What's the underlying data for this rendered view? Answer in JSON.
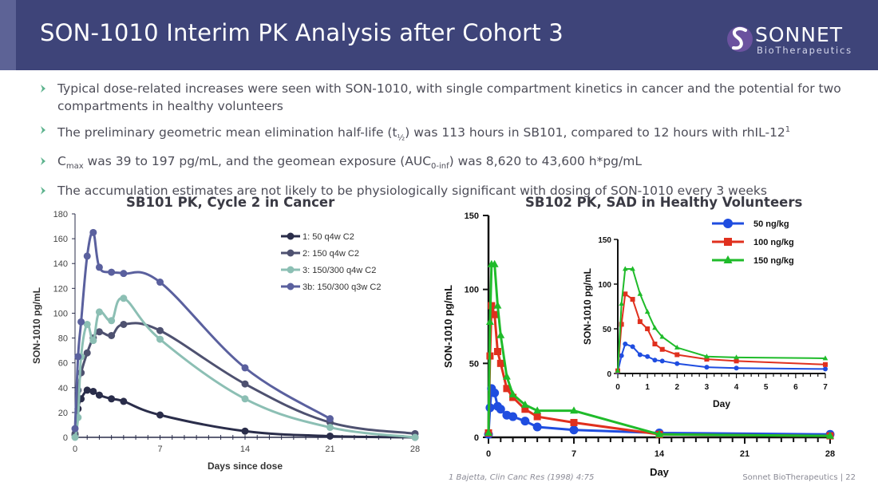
{
  "header": {
    "title": "SON-1010 Interim PK Analysis after Cohort 3"
  },
  "logo": {
    "name": "SONNET",
    "tagline": "BioTherapeutics"
  },
  "bullets": [
    {
      "parts": [
        {
          "t": "Typical dose-related increases were seen with SON-1010, with single compartment kinetics in cancer and the potential for two compartments in healthy volunteers"
        }
      ]
    },
    {
      "parts": [
        {
          "t": "The preliminary geometric mean elimination half-life (t"
        },
        {
          "t": "½",
          "s": "sub"
        },
        {
          "t": ") was 113 hours in SB101, compared to 12 hours with rhIL-12"
        },
        {
          "t": "1",
          "s": "sup"
        }
      ]
    },
    {
      "parts": [
        {
          "t": "C"
        },
        {
          "t": "max",
          "s": "sub"
        },
        {
          "t": " was 39 to 197 pg/mL, and the geomean exposure (AUC"
        },
        {
          "t": "0-inf",
          "s": "sub"
        },
        {
          "t": ") was 8,620 to 43,600 h*pg/mL"
        }
      ]
    },
    {
      "parts": [
        {
          "t": "The accumulation estimates are not likely to be physiologically significant with dosing of SON-1010 every 3 weeks"
        }
      ]
    }
  ],
  "chart_data": [
    {
      "type": "line",
      "title": "SB101 PK, Cycle 2 in Cancer",
      "xlabel": "Days since dose",
      "ylabel": "SON-1010 pg/mL",
      "xlim": [
        0,
        28
      ],
      "ylim": [
        0,
        180
      ],
      "xticks": [
        0,
        7,
        14,
        21,
        28
      ],
      "yticks": [
        0,
        20,
        40,
        60,
        80,
        100,
        120,
        140,
        160,
        180
      ],
      "legend": "top-right",
      "grid": false,
      "series": [
        {
          "name": "1: 50 q4w C2",
          "color": "#2a2d4a",
          "x": [
            0,
            0.25,
            0.5,
            1,
            1.5,
            2,
            3,
            4,
            7,
            14,
            21,
            28
          ],
          "y": [
            2,
            23,
            31,
            38,
            37,
            34,
            31,
            29,
            18,
            5,
            1,
            0
          ]
        },
        {
          "name": "2: 150 q4w C2",
          "color": "#4e5170",
          "x": [
            0,
            0.25,
            0.5,
            1,
            1.5,
            2,
            3,
            4,
            7,
            14,
            21,
            28
          ],
          "y": [
            3,
            38,
            52,
            68,
            80,
            85,
            82,
            91,
            86,
            43,
            12,
            3
          ]
        },
        {
          "name": "3: 150/300 q4w C2",
          "color": "#8cbfb4",
          "x": [
            0,
            0.25,
            0.5,
            1,
            1.5,
            2,
            3,
            4,
            7,
            14,
            21,
            28
          ],
          "y": [
            0,
            16,
            65,
            91,
            78,
            101,
            94,
            112,
            79,
            31,
            8,
            0
          ]
        },
        {
          "name": "3b: 150/300 q3w C2",
          "color": "#5a609e",
          "x": [
            0,
            0.25,
            0.5,
            1,
            1.5,
            2,
            3,
            4,
            7,
            14,
            21
          ],
          "y": [
            7,
            65,
            93,
            146,
            165,
            137,
            133,
            132,
            125,
            56,
            15
          ]
        }
      ]
    },
    {
      "type": "line",
      "title": "SB102 PK, SAD in Healthy Volunteers",
      "xlabel": "Day",
      "ylabel": "SON-1010 pg/mL",
      "xlim": [
        0,
        28
      ],
      "ylim": [
        0,
        150
      ],
      "xticks": [
        0,
        7,
        14,
        21,
        28
      ],
      "yticks": [
        0,
        50,
        100,
        150
      ],
      "legend": "inset",
      "grid": false,
      "series": [
        {
          "name": "50 ng/kg",
          "color": "#1f4de0",
          "marker": "circle",
          "x": [
            0,
            0.125,
            0.25,
            0.5,
            0.75,
            1,
            1.5,
            2,
            3,
            4,
            7,
            14,
            28
          ],
          "y": [
            2,
            20,
            33,
            30,
            21,
            19,
            15,
            14,
            11,
            7,
            5,
            3,
            2
          ]
        },
        {
          "name": "100 ng/kg",
          "color": "#e0301e",
          "marker": "square",
          "x": [
            0,
            0.125,
            0.25,
            0.5,
            0.75,
            1,
            1.5,
            2,
            3,
            4,
            7,
            14,
            28
          ],
          "y": [
            3,
            55,
            89,
            83,
            58,
            50,
            33,
            27,
            19,
            14,
            10,
            2,
            1
          ]
        },
        {
          "name": "150 ng/kg",
          "color": "#1fbb2a",
          "marker": "triangle",
          "x": [
            0,
            0.125,
            0.25,
            0.5,
            0.75,
            1,
            1.5,
            2,
            3,
            4,
            7,
            14,
            28
          ],
          "y": [
            3,
            78,
            117,
            117,
            89,
            69,
            41,
            29,
            22,
            18,
            18,
            2,
            1
          ]
        }
      ]
    },
    {
      "type": "line",
      "title": "",
      "xlabel": "Day",
      "ylabel": "SON-1010 pg/mL",
      "xlim": [
        0,
        7
      ],
      "ylim": [
        0,
        150
      ],
      "xticks": [
        0,
        1,
        2,
        3,
        4,
        5,
        6,
        7
      ],
      "yticks": [
        0,
        50,
        100,
        150
      ],
      "series": [
        {
          "name": "50 ng/kg",
          "color": "#1f4de0",
          "marker": "circle",
          "x": [
            0,
            0.125,
            0.25,
            0.5,
            0.75,
            1,
            1.25,
            1.5,
            2,
            3,
            4,
            7
          ],
          "y": [
            2,
            20,
            33,
            30,
            21,
            19,
            15,
            14,
            11,
            7,
            6,
            5
          ]
        },
        {
          "name": "100 ng/kg",
          "color": "#e0301e",
          "marker": "square",
          "x": [
            0,
            0.125,
            0.25,
            0.5,
            0.75,
            1,
            1.25,
            1.5,
            2,
            3,
            4,
            7
          ],
          "y": [
            3,
            55,
            89,
            83,
            58,
            50,
            33,
            27,
            21,
            16,
            14,
            10
          ]
        },
        {
          "name": "150 ng/kg",
          "color": "#1fbb2a",
          "marker": "triangle",
          "x": [
            0,
            0.125,
            0.25,
            0.5,
            0.75,
            1,
            1.25,
            1.5,
            2,
            3,
            4,
            7
          ],
          "y": [
            3,
            78,
            117,
            117,
            89,
            69,
            51,
            41,
            29,
            19,
            18,
            17
          ]
        }
      ]
    }
  ],
  "footnote": "1 Bajetta, Clin Canc Res (1998) 4:75",
  "page_footer": "Sonnet BioTherapeutics | 22"
}
